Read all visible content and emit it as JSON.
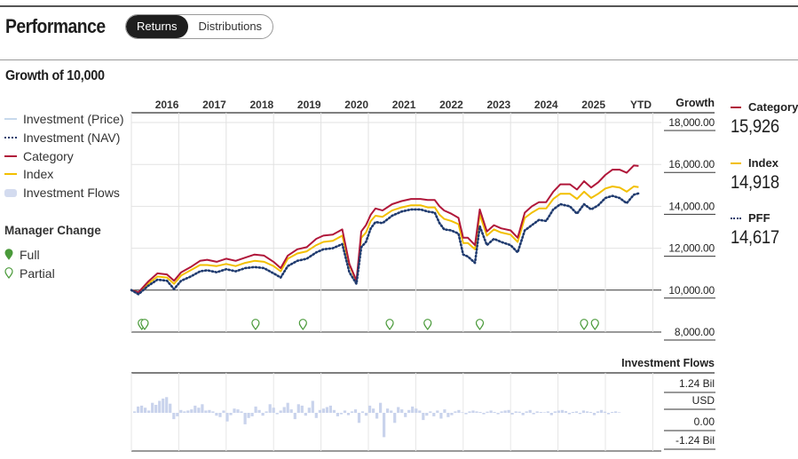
{
  "header": {
    "title": "Performance",
    "tabs": [
      {
        "label": "Returns",
        "active": true
      },
      {
        "label": "Distributions",
        "active": false
      }
    ]
  },
  "section_title": "Growth of 10,000",
  "legend": {
    "items": [
      {
        "label": "Investment (Price)",
        "style": "line",
        "color": "#c7d9ec"
      },
      {
        "label": "Investment (NAV)",
        "style": "dotted",
        "color": "#1f3a6e"
      },
      {
        "label": "Category",
        "style": "line",
        "color": "#b0173a"
      },
      {
        "label": "Index",
        "style": "line",
        "color": "#f2bf00"
      },
      {
        "label": "Investment Flows",
        "style": "box",
        "color": "#d3dbef"
      }
    ],
    "manager_change": {
      "title": "Manager Change",
      "items": [
        {
          "label": "Full",
          "style": "filled",
          "icon": "pin-filled-icon"
        },
        {
          "label": "Partial",
          "style": "outline",
          "icon": "pin-outline-icon"
        }
      ]
    }
  },
  "right_legend": [
    {
      "label": "Category",
      "value": "15,926",
      "color": "#b0173a",
      "style": "line"
    },
    {
      "label": "Index",
      "value": "14,918",
      "color": "#f2bf00",
      "style": "line"
    },
    {
      "label": "PFF",
      "value": "14,617",
      "color": "#1f3a6e",
      "style": "dotted"
    }
  ],
  "colors": {
    "category": "#b0173a",
    "index": "#f2bf00",
    "nav": "#1f3a6e",
    "flows": "#c9d3ec",
    "manager_pin": "#4a9a3a"
  },
  "chart_data": [
    {
      "type": "line",
      "xlabel": "",
      "ylabel": "Growth",
      "x_tick_labels": [
        "2016",
        "2017",
        "2018",
        "2019",
        "2020",
        "2021",
        "2022",
        "2023",
        "2024",
        "2025",
        "YTD"
      ],
      "y_tick_labels": [
        "18,000.00",
        "16,000.00",
        "14,000.00",
        "12,000.00",
        "10,000.00",
        "8,000.00"
      ],
      "ylim": [
        8000,
        18000
      ],
      "x": [
        2015.0,
        2015.15,
        2015.35,
        2015.55,
        2015.75,
        2015.9,
        2016.05,
        2016.25,
        2016.45,
        2016.6,
        2016.8,
        2017.0,
        2017.2,
        2017.4,
        2017.6,
        2017.8,
        2018.0,
        2018.15,
        2018.3,
        2018.5,
        2018.7,
        2018.9,
        2019.05,
        2019.25,
        2019.45,
        2019.6,
        2019.75,
        2019.85,
        2019.95,
        2020.05,
        2020.15,
        2020.3,
        2020.5,
        2020.7,
        2020.9,
        2021.1,
        2021.25,
        2021.4,
        2021.5,
        2021.6,
        2021.75,
        2021.9,
        2022.0,
        2022.1,
        2022.25,
        2022.35,
        2022.5,
        2022.65,
        2022.8,
        2023.0,
        2023.15,
        2023.3,
        2023.45,
        2023.6,
        2023.75,
        2023.9,
        2024.05,
        2024.25,
        2024.4,
        2024.55,
        2024.7,
        2024.85,
        2025.0,
        2025.15,
        2025.3,
        2025.45,
        2025.6,
        2025.7
      ],
      "series": [
        {
          "name": "Category",
          "values": [
            10000,
            9900,
            10400,
            10800,
            10750,
            10450,
            10850,
            11100,
            11400,
            11450,
            11350,
            11500,
            11400,
            11550,
            11700,
            11650,
            11350,
            11050,
            11650,
            11950,
            12050,
            12450,
            12600,
            12650,
            12900,
            11250,
            10450,
            12800,
            13100,
            13600,
            13900,
            13800,
            14100,
            14250,
            14350,
            14350,
            14300,
            14300,
            14000,
            13800,
            13650,
            13450,
            12500,
            12500,
            12150,
            13850,
            12800,
            13100,
            12950,
            12850,
            12500,
            13700,
            14000,
            14200,
            14200,
            14700,
            15050,
            15050,
            14800,
            15200,
            14900,
            15150,
            15500,
            15750,
            15750,
            15600,
            15950,
            15926
          ]
        },
        {
          "name": "Index",
          "values": [
            10000,
            9900,
            10300,
            10650,
            10600,
            10300,
            10700,
            10950,
            11200,
            11200,
            11150,
            11250,
            11150,
            11300,
            11400,
            11350,
            11150,
            10900,
            11500,
            11750,
            11850,
            12150,
            12300,
            12350,
            12600,
            11200,
            10400,
            12500,
            12750,
            13300,
            13550,
            13500,
            13800,
            13950,
            14050,
            14050,
            13950,
            13950,
            13600,
            13400,
            13300,
            13150,
            12250,
            12250,
            11950,
            13600,
            12600,
            12900,
            12750,
            12650,
            12300,
            13450,
            13700,
            13900,
            13900,
            14350,
            14600,
            14600,
            14350,
            14700,
            14400,
            14600,
            14850,
            14950,
            14900,
            14700,
            14950,
            14918
          ]
        },
        {
          "name": "PFF",
          "values": [
            10000,
            9800,
            10200,
            10500,
            10450,
            10050,
            10450,
            10650,
            10900,
            10950,
            10850,
            11000,
            10900,
            11050,
            11100,
            11050,
            10800,
            10600,
            11150,
            11400,
            11500,
            11800,
            11950,
            12000,
            12200,
            10850,
            10300,
            12050,
            12300,
            12950,
            13250,
            13200,
            13550,
            13750,
            13850,
            13850,
            13750,
            13700,
            13200,
            12900,
            12850,
            12700,
            11700,
            11600,
            11300,
            13050,
            12150,
            12450,
            12300,
            12150,
            11800,
            12850,
            13100,
            13350,
            13300,
            13850,
            14100,
            14000,
            13650,
            14100,
            13850,
            14050,
            14400,
            14500,
            14400,
            14150,
            14550,
            14617
          ]
        }
      ],
      "manager_changes": [
        {
          "x": 2015.22,
          "kind": "partial"
        },
        {
          "x": 2015.28,
          "kind": "partial"
        },
        {
          "x": 2017.62,
          "kind": "partial"
        },
        {
          "x": 2018.62,
          "kind": "partial"
        },
        {
          "x": 2020.45,
          "kind": "partial"
        },
        {
          "x": 2021.25,
          "kind": "partial"
        },
        {
          "x": 2022.35,
          "kind": "partial"
        },
        {
          "x": 2024.55,
          "kind": "partial"
        },
        {
          "x": 2024.78,
          "kind": "partial"
        }
      ]
    },
    {
      "type": "bar",
      "title": "Investment Flows",
      "y_tick_labels": [
        "1.24 Bil",
        "USD",
        "0.00",
        "-1.24 Bil"
      ],
      "ylim": [
        -1.24,
        1.24
      ],
      "y_unit": "Bil USD",
      "values": [
        0.05,
        0.22,
        0.25,
        0.18,
        0.08,
        0.35,
        0.28,
        0.42,
        0.5,
        0.55,
        0.32,
        -0.22,
        -0.12,
        0.1,
        0.05,
        0.08,
        0.12,
        0.25,
        0.18,
        0.3,
        0.08,
        0.1,
        0.05,
        -0.1,
        -0.15,
        0.08,
        -0.3,
        -0.08,
        0.15,
        0.12,
        0.05,
        -0.4,
        -0.18,
        -0.12,
        0.22,
        0.1,
        -0.1,
        0.05,
        0.3,
        0.18,
        -0.05,
        0.08,
        0.2,
        0.35,
        0.12,
        -0.22,
        0.3,
        0.25,
        -0.1,
        0.18,
        0.42,
        -0.18,
        0.1,
        0.15,
        0.2,
        0.25,
        0.1,
        -0.12,
        -0.05,
        0.08,
        -0.08,
        0.05,
        0.12,
        -0.35,
        0.05,
        -0.1,
        0.25,
        0.15,
        -0.2,
        0.35,
        -0.85,
        0.15,
        0.08,
        -0.35,
        0.2,
        0.12,
        -0.15,
        0.1,
        0.22,
        0.15,
        0.08,
        -0.25,
        -0.1,
        0.05,
        -0.12,
        0.08,
        -0.2,
        0.12,
        -0.15,
        -0.08,
        0.05,
        0.1,
        0.02,
        -0.05,
        0.05,
        0.08,
        0.05,
        0.03,
        -0.05,
        0.04,
        0.08,
        0.03,
        -0.05,
        0.05,
        0.08,
        0.1,
        -0.06,
        0.05,
        0.04,
        -0.08,
        0.05,
        0.1,
        -0.05,
        0.05,
        0.03,
        0.02,
        0.05,
        -0.08,
        0.05,
        0.08,
        0.1,
        0.06,
        -0.05,
        0.03,
        0.05,
        -0.04,
        0.08,
        0.05,
        0.03,
        -0.08,
        0.05,
        0.1,
        0.04,
        -0.05,
        0.03,
        0.05,
        0.02
      ]
    }
  ]
}
